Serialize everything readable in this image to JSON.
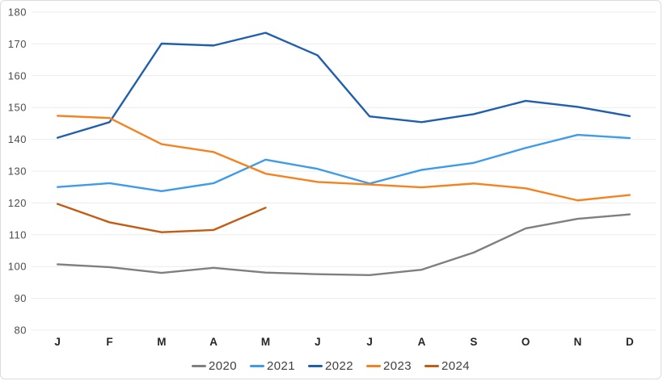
{
  "chart_data": {
    "type": "line",
    "title": "",
    "xlabel": "",
    "ylabel": "",
    "x_labels": [
      "J",
      "F",
      "M",
      "A",
      "M",
      "J",
      "J",
      "A",
      "S",
      "O",
      "N",
      "D"
    ],
    "ylim": [
      80,
      180
    ],
    "y_tick_step": 10,
    "y_tick_labels": [
      "180",
      "170",
      "160",
      "150",
      "140",
      "130",
      "120",
      "110",
      "100",
      "90",
      "80"
    ],
    "grid": true,
    "legend_position": "bottom",
    "series": [
      {
        "name": "2020",
        "color": "#7f7f7f",
        "values": [
          100.7,
          99.8,
          98.0,
          99.6,
          98.1,
          97.6,
          97.3,
          99.0,
          104.4,
          112.0,
          115.0,
          116.4
        ]
      },
      {
        "name": "2021",
        "color": "#3d9be9",
        "values": [
          125.0,
          126.2,
          123.7,
          126.2,
          133.6,
          130.7,
          126.1,
          130.4,
          132.6,
          137.3,
          141.4,
          140.4
        ]
      },
      {
        "name": "2022",
        "color": "#1f5fad",
        "values": [
          140.5,
          145.4,
          170.1,
          169.5,
          173.5,
          166.4,
          147.2,
          145.4,
          147.9,
          152.1,
          150.2,
          147.3
        ]
      },
      {
        "name": "2023",
        "color": "#f5821f",
        "values": [
          147.4,
          146.7,
          138.5,
          136.0,
          129.2,
          126.6,
          125.8,
          124.9,
          126.1,
          124.6,
          120.8,
          122.5
        ]
      },
      {
        "name": "2024",
        "color": "#c55a11",
        "values": [
          119.7,
          113.9,
          110.8,
          111.5,
          118.5
        ]
      }
    ],
    "style": {
      "grid_color": "#ececec",
      "y_label_color": "#4d4d4d",
      "x_label_color": "#262626",
      "background": "#ffffff"
    }
  }
}
